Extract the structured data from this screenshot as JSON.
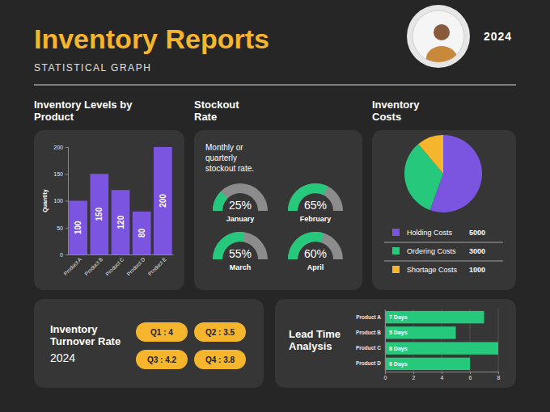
{
  "header": {
    "title": "Inventory Reports",
    "subtitle": "STATISTICAL GRAPH",
    "year": "2024"
  },
  "chart_data": [
    {
      "type": "bar",
      "title": "Inventory Levels by Product",
      "y_label": "Quantity",
      "categories": [
        "Product A",
        "Product B",
        "Product C",
        "Product D",
        "Product E"
      ],
      "values": [
        100,
        150,
        120,
        80,
        200
      ],
      "color": "#7b55df",
      "ylim": [
        0,
        200
      ],
      "yticks": [
        0,
        50,
        100,
        150,
        200
      ],
      "grid": false,
      "data_labels": true
    },
    {
      "type": "gauge",
      "title": "Stockout Rate",
      "subtitle": "Monthly or quarterly stockout rate.",
      "categories": [
        "January",
        "February",
        "March",
        "April"
      ],
      "values": [
        25,
        65,
        55,
        60
      ],
      "value_labels": [
        "25%",
        "65%",
        "55%",
        "60%"
      ],
      "ylim": [
        0,
        100
      ],
      "color": "#26c97b",
      "data_labels": true
    },
    {
      "type": "pie",
      "title": "Inventory Costs",
      "categories": [
        "Holding Costs",
        "Ordering Costs",
        "Shortage Costs"
      ],
      "values": [
        5000,
        3000,
        1000
      ],
      "colors": [
        "#7b55df",
        "#26c97b",
        "#f5b62d"
      ],
      "legend": "bottom"
    },
    {
      "type": "badges",
      "title": "Inventory Turnover Rate",
      "subtitle": "2024",
      "values": [
        4,
        3.5,
        4.2,
        3.8
      ],
      "value_labels": [
        "Q1 : 4",
        "Q2 : 3.5",
        "Q3 : 4.2",
        "Q4 : 3.8"
      ],
      "color": "#f5b62d",
      "data_labels": true
    },
    {
      "type": "bar",
      "orientation": "horizontal",
      "title": "Lead Time Analysis",
      "categories": [
        "Product A",
        "Product B",
        "Product C",
        "Product D"
      ],
      "values": [
        7,
        5,
        8,
        6
      ],
      "value_labels": [
        "7 Days",
        "5 Days",
        "8 Days",
        "6 Days"
      ],
      "color": "#26c97b",
      "xlim": [
        0,
        8
      ],
      "xticks": [
        0,
        2,
        4,
        6,
        8
      ],
      "grid": true,
      "data_labels": true
    }
  ]
}
